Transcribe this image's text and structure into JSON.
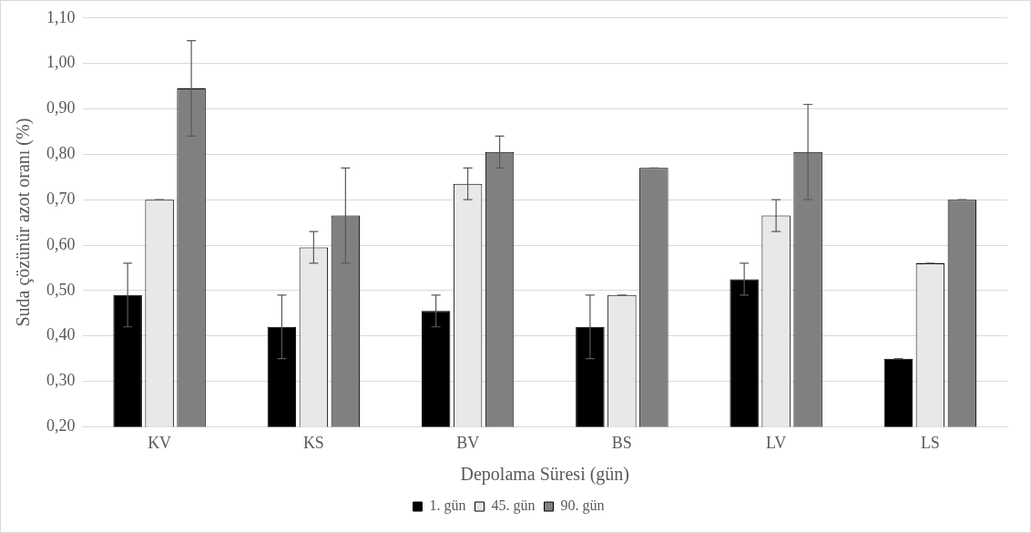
{
  "chart_data": {
    "type": "bar",
    "xlabel": "Depolama Süresi (gün)",
    "ylabel": "Suda çözünür azot oranı (%)",
    "categories": [
      "KV",
      "KS",
      "BV",
      "BS",
      "LV",
      "LS"
    ],
    "series": [
      {
        "name": "1. gün",
        "color": "#000000",
        "values": [
          0.49,
          0.42,
          0.455,
          0.42,
          0.525,
          0.35
        ],
        "errors": [
          0.07,
          0.07,
          0.035,
          0.07,
          0.035,
          0
        ]
      },
      {
        "name": "45. gün",
        "color": "#e8e8e8",
        "values": [
          0.7,
          0.595,
          0.735,
          0.49,
          0.665,
          0.56
        ],
        "errors": [
          0,
          0.035,
          0.035,
          0,
          0.035,
          0
        ]
      },
      {
        "name": "90. gün",
        "color": "#808080",
        "values": [
          0.945,
          0.665,
          0.805,
          0.77,
          0.805,
          0.7
        ],
        "errors": [
          0.105,
          0.105,
          0.035,
          0,
          0.105,
          0
        ]
      }
    ],
    "ylim": [
      0.2,
      1.1
    ],
    "yticks": [
      {
        "value": 0.2,
        "label": "0,20"
      },
      {
        "value": 0.3,
        "label": "0,30"
      },
      {
        "value": 0.4,
        "label": "0,40"
      },
      {
        "value": 0.5,
        "label": "0,50"
      },
      {
        "value": 0.6,
        "label": "0,60"
      },
      {
        "value": 0.7,
        "label": "0,70"
      },
      {
        "value": 0.8,
        "label": "0,80"
      },
      {
        "value": 0.9,
        "label": "0,90"
      },
      {
        "value": 1.0,
        "label": "1,00"
      },
      {
        "value": 1.1,
        "label": "1,10"
      }
    ],
    "grid": "y",
    "legend": "bottom"
  }
}
